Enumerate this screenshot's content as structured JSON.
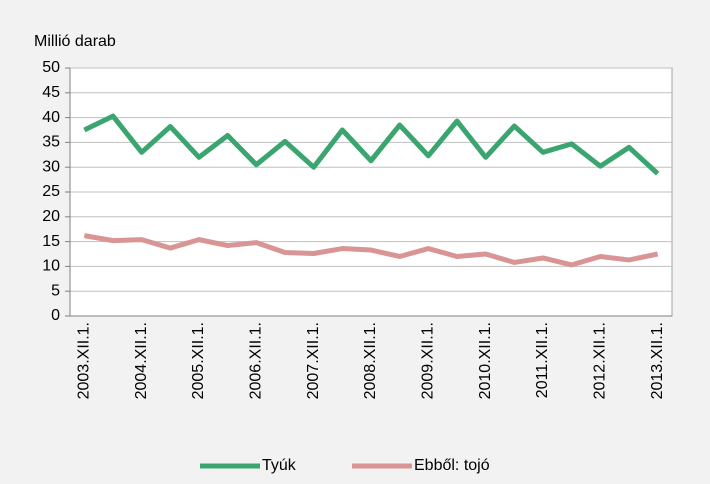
{
  "chart_data": {
    "type": "line",
    "y_axis_label": "Millió darab",
    "categories": [
      "2003.XII.1.",
      null,
      "2004.XII.1.",
      null,
      "2005.XII.1.",
      null,
      "2006.XII.1.",
      null,
      "2007.XII.1.",
      null,
      "2008.XII.1.",
      null,
      "2009.XII.1.",
      null,
      "2010.XII.1.",
      null,
      "2011.XII.1.",
      null,
      "2012.XII.1.",
      null,
      "2013.XII.1."
    ],
    "series": [
      {
        "name": "Tyúk",
        "color": "#3aa56f",
        "values": [
          37.5,
          40.3,
          33,
          38.2,
          32,
          36.4,
          30.5,
          35.2,
          30,
          37.5,
          31.3,
          38.5,
          32.3,
          39.3,
          32,
          38.3,
          33,
          34.7,
          30.2,
          34,
          28.7
        ]
      },
      {
        "name": "Ebből: tojó",
        "color": "#d99595",
        "values": [
          16.2,
          15.2,
          15.4,
          13.7,
          15.4,
          14.2,
          14.8,
          12.8,
          12.6,
          13.6,
          13.3,
          12,
          13.6,
          12,
          12.5,
          10.8,
          11.7,
          10.3,
          12,
          11.3,
          12.5
        ]
      }
    ],
    "ylim": [
      0,
      50
    ],
    "yticks": [
      0,
      5,
      10,
      15,
      20,
      25,
      30,
      35,
      40,
      45,
      50
    ],
    "grid": true,
    "legend": "bottom"
  }
}
